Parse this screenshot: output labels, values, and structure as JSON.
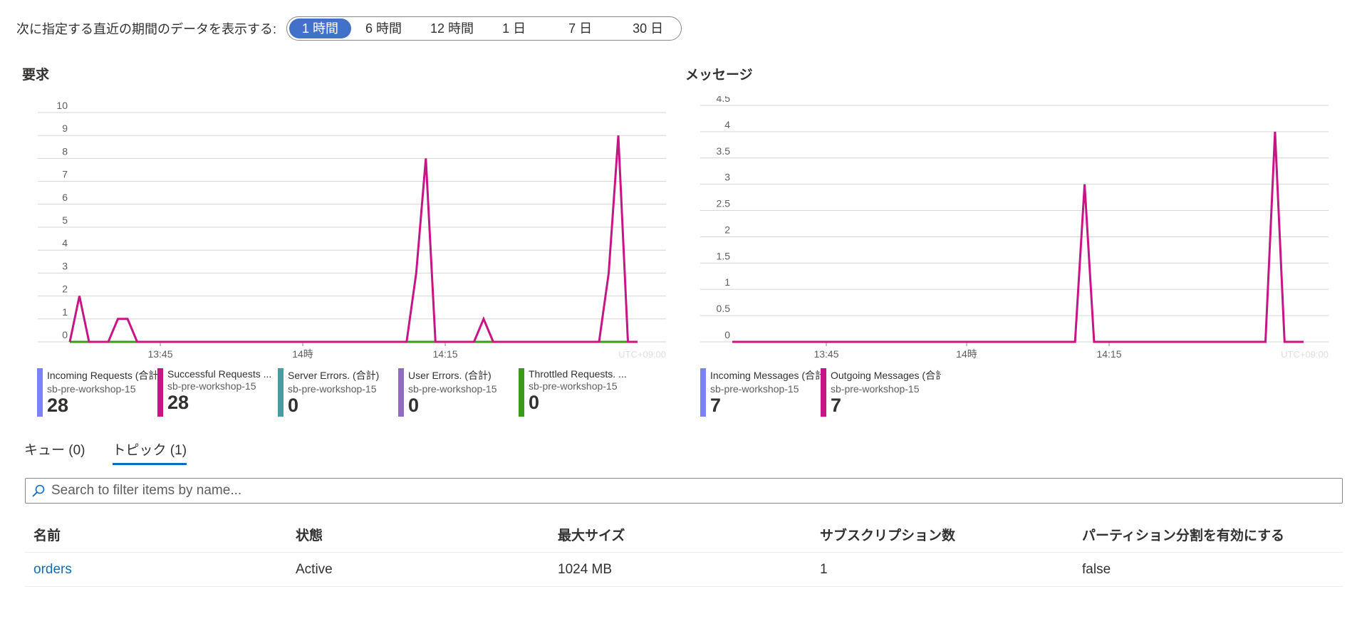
{
  "time_range": {
    "label": "次に指定する直近の期間のデータを表示する:",
    "options": [
      "1 時間",
      "6 時間",
      "12 時間",
      "1 日",
      "7 日",
      "30 日"
    ],
    "selected": "1 時間"
  },
  "colors": {
    "magenta": "#c71585",
    "green": "#3b9a1a",
    "blue": "#7b82f5",
    "teal": "#4c9aa0",
    "purple": "#8e6dbf",
    "accent": "#4271c9"
  },
  "timezone_label": "UTC+09:00",
  "chart_data": [
    {
      "type": "line",
      "title": "要求",
      "x_tick_labels": [
        "13:45",
        "14時",
        "14:15"
      ],
      "y_ticks": [
        0,
        1,
        2,
        3,
        4,
        5,
        6,
        7,
        8,
        9,
        10
      ],
      "ylim": [
        0,
        10
      ],
      "series": [
        {
          "name": "Successful Requests (合計)",
          "color": "#c71585",
          "points": [
            [
              0,
              0
            ],
            [
              1,
              2
            ],
            [
              2,
              0
            ],
            [
              4,
              0
            ],
            [
              5,
              1
            ],
            [
              6,
              1
            ],
            [
              7,
              0
            ],
            [
              35,
              0
            ],
            [
              36,
              3
            ],
            [
              37,
              8
            ],
            [
              38,
              0
            ],
            [
              42,
              0
            ],
            [
              43,
              1
            ],
            [
              44,
              0
            ],
            [
              55,
              0
            ],
            [
              56,
              3
            ],
            [
              57,
              9
            ],
            [
              58,
              0
            ],
            [
              59,
              0
            ]
          ]
        },
        {
          "name": "Throttled Requests. (合計)",
          "color": "#3b9a1a",
          "points": [
            [
              0,
              0
            ],
            [
              59,
              0
            ]
          ]
        }
      ],
      "legend": [
        {
          "name": "Incoming Requests (合計)",
          "resource": "sb-pre-workshop-15",
          "value": "28",
          "color": "#7b82f5"
        },
        {
          "name": "Successful Requests ...",
          "resource": "sb-pre-workshop-15",
          "value": "28",
          "color": "#c71585"
        },
        {
          "name": "Server Errors. (合計)",
          "resource": "sb-pre-workshop-15",
          "value": "0",
          "color": "#4c9aa0"
        },
        {
          "name": "User Errors. (合計)",
          "resource": "sb-pre-workshop-15",
          "value": "0",
          "color": "#8e6dbf"
        },
        {
          "name": "Throttled Requests. ...",
          "resource": "sb-pre-workshop-15",
          "value": "0",
          "color": "#3b9a1a"
        }
      ]
    },
    {
      "type": "line",
      "title": "メッセージ",
      "x_tick_labels": [
        "13:45",
        "14時",
        "14:15"
      ],
      "y_ticks": [
        0,
        0.5,
        1,
        1.5,
        2,
        2.5,
        3,
        3.5,
        4,
        4.5
      ],
      "ylim": [
        0,
        4.5
      ],
      "series": [
        {
          "name": "Outgoing Messages (合計)",
          "color": "#c71585",
          "points": [
            [
              0,
              0
            ],
            [
              36,
              0
            ],
            [
              37,
              3
            ],
            [
              38,
              0
            ],
            [
              56,
              0
            ],
            [
              57,
              4
            ],
            [
              58,
              0
            ],
            [
              60,
              0
            ]
          ]
        }
      ],
      "legend": [
        {
          "name": "Incoming Messages (合計)",
          "resource": "sb-pre-workshop-15",
          "value": "7",
          "color": "#7b82f5"
        },
        {
          "name": "Outgoing Messages (合計)",
          "resource": "sb-pre-workshop-15",
          "value": "7",
          "color": "#c71585"
        }
      ]
    }
  ],
  "tabs": [
    {
      "label": "キュー (0)",
      "active": false
    },
    {
      "label": "トピック (1)",
      "active": true
    }
  ],
  "search": {
    "placeholder": "Search to filter items by name...",
    "value": ""
  },
  "table": {
    "columns": [
      "名前",
      "状態",
      "最大サイズ",
      "サブスクリプション数",
      "パーティション分割を有効にする"
    ],
    "rows": [
      [
        "orders",
        "Active",
        "1024 MB",
        "1",
        "false"
      ]
    ]
  }
}
